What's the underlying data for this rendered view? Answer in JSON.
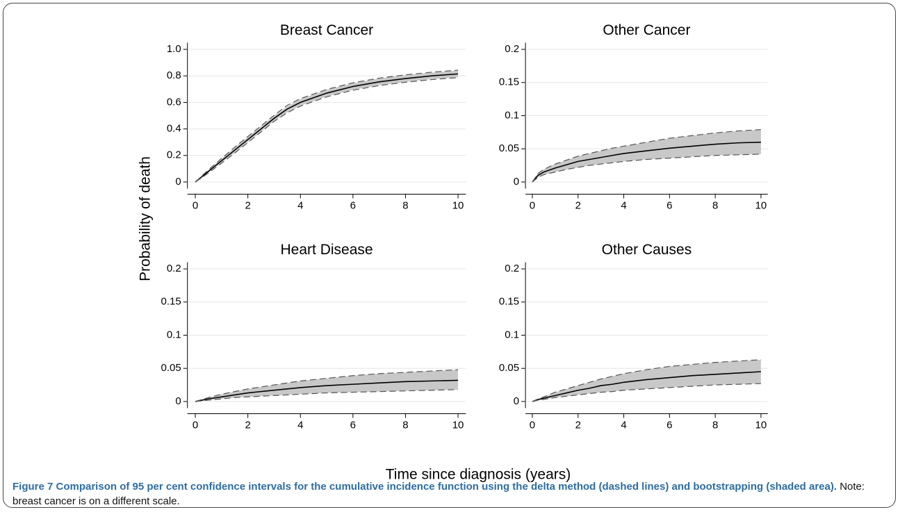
{
  "figure": {
    "ylabel": "Probability of death",
    "xlabel": "Time since diagnosis (years)",
    "caption_bold": "Figure 7 Comparison of 95 per cent confidence intervals for the cumulative incidence function using the delta method (dashed lines) and bootstrapping (shaded area).",
    "caption_note": "Note: breast cancer is on a different scale."
  },
  "chart_data": [
    {
      "type": "line",
      "title": "Breast Cancer",
      "x": [
        0,
        0.25,
        0.5,
        1,
        1.5,
        2,
        2.5,
        3,
        3.5,
        4,
        5,
        6,
        7,
        8,
        9,
        10
      ],
      "xlim": [
        -0.3,
        10.3
      ],
      "xticks": [
        0,
        2,
        4,
        6,
        8,
        10
      ],
      "ylim": [
        -0.05,
        1.05
      ],
      "yticks": [
        0,
        0.2,
        0.4,
        0.6,
        0.8,
        {
          "value": 1,
          "label": "1.0"
        }
      ],
      "grid": true,
      "band": {
        "color": "#c8c8c8",
        "lower": [
          0,
          0.035,
          0.07,
          0.145,
          0.22,
          0.3,
          0.38,
          0.46,
          0.525,
          0.575,
          0.645,
          0.695,
          0.73,
          0.755,
          0.775,
          0.79
        ],
        "upper": [
          0,
          0.045,
          0.09,
          0.175,
          0.26,
          0.34,
          0.42,
          0.5,
          0.57,
          0.625,
          0.695,
          0.745,
          0.78,
          0.805,
          0.825,
          0.84
        ]
      },
      "series": [
        {
          "color": "#000000",
          "dashed": false,
          "values": [
            0,
            0.04,
            0.08,
            0.16,
            0.24,
            0.32,
            0.4,
            0.48,
            0.55,
            0.6,
            0.67,
            0.72,
            0.755,
            0.78,
            0.8,
            0.815
          ]
        },
        {
          "color": "#555555",
          "dashed": true,
          "values": [
            0,
            0.033,
            0.068,
            0.142,
            0.218,
            0.297,
            0.377,
            0.457,
            0.522,
            0.572,
            0.642,
            0.692,
            0.727,
            0.752,
            0.772,
            0.787
          ]
        },
        {
          "color": "#555555",
          "dashed": true,
          "values": [
            0,
            0.047,
            0.092,
            0.178,
            0.262,
            0.343,
            0.423,
            0.503,
            0.578,
            0.628,
            0.698,
            0.748,
            0.783,
            0.808,
            0.828,
            0.843
          ]
        }
      ]
    },
    {
      "type": "line",
      "title": "Other Cancer",
      "x": [
        0,
        0.25,
        0.5,
        1,
        1.5,
        2,
        2.5,
        3,
        3.5,
        4,
        5,
        6,
        7,
        8,
        9,
        10
      ],
      "xlim": [
        -0.3,
        10.3
      ],
      "xticks": [
        0,
        2,
        4,
        6,
        8,
        10
      ],
      "ylim": [
        -0.01,
        0.21
      ],
      "yticks": [
        0,
        0.05,
        0.1,
        0.15,
        0.2
      ],
      "grid": true,
      "band": {
        "color": "#c8c8c8",
        "lower": [
          0,
          0.007,
          0.011,
          0.015,
          0.019,
          0.022,
          0.025,
          0.027,
          0.029,
          0.031,
          0.034,
          0.036,
          0.038,
          0.04,
          0.041,
          0.042
        ],
        "upper": [
          0,
          0.013,
          0.019,
          0.027,
          0.033,
          0.039,
          0.043,
          0.047,
          0.051,
          0.054,
          0.06,
          0.066,
          0.07,
          0.074,
          0.077,
          0.079
        ]
      },
      "series": [
        {
          "color": "#000000",
          "dashed": false,
          "values": [
            0,
            0.01,
            0.015,
            0.021,
            0.026,
            0.031,
            0.034,
            0.037,
            0.04,
            0.043,
            0.047,
            0.051,
            0.054,
            0.057,
            0.059,
            0.06
          ]
        },
        {
          "color": "#555555",
          "dashed": true,
          "values": [
            0,
            0.007,
            0.011,
            0.015,
            0.019,
            0.022,
            0.025,
            0.027,
            0.029,
            0.031,
            0.034,
            0.036,
            0.038,
            0.04,
            0.041,
            0.042
          ]
        },
        {
          "color": "#555555",
          "dashed": true,
          "values": [
            0,
            0.013,
            0.019,
            0.027,
            0.033,
            0.039,
            0.043,
            0.047,
            0.051,
            0.054,
            0.06,
            0.066,
            0.07,
            0.074,
            0.077,
            0.079
          ]
        }
      ]
    },
    {
      "type": "line",
      "title": "Heart Disease",
      "x": [
        0,
        0.25,
        0.5,
        1,
        1.5,
        2,
        2.5,
        3,
        3.5,
        4,
        5,
        6,
        7,
        8,
        9,
        10
      ],
      "xlim": [
        -0.3,
        10.3
      ],
      "xticks": [
        0,
        2,
        4,
        6,
        8,
        10
      ],
      "ylim": [
        -0.01,
        0.21
      ],
      "yticks": [
        0,
        0.05,
        0.1,
        0.15,
        0.2
      ],
      "grid": true,
      "band": {
        "color": "#c8c8c8",
        "lower": [
          0,
          0.001,
          0.002,
          0.004,
          0.006,
          0.007,
          0.008,
          0.009,
          0.01,
          0.011,
          0.013,
          0.014,
          0.015,
          0.016,
          0.017,
          0.018
        ],
        "upper": [
          0,
          0.003,
          0.006,
          0.011,
          0.015,
          0.019,
          0.022,
          0.025,
          0.028,
          0.031,
          0.035,
          0.039,
          0.042,
          0.044,
          0.046,
          0.048
        ]
      },
      "series": [
        {
          "color": "#000000",
          "dashed": false,
          "values": [
            0,
            0.002,
            0.004,
            0.007,
            0.01,
            0.013,
            0.015,
            0.017,
            0.019,
            0.021,
            0.024,
            0.026,
            0.028,
            0.03,
            0.031,
            0.032
          ]
        },
        {
          "color": "#555555",
          "dashed": true,
          "values": [
            0,
            0.001,
            0.002,
            0.004,
            0.006,
            0.007,
            0.008,
            0.009,
            0.01,
            0.011,
            0.013,
            0.014,
            0.015,
            0.016,
            0.017,
            0.018
          ]
        },
        {
          "color": "#555555",
          "dashed": true,
          "values": [
            0,
            0.003,
            0.006,
            0.011,
            0.015,
            0.019,
            0.022,
            0.025,
            0.028,
            0.031,
            0.035,
            0.039,
            0.042,
            0.044,
            0.046,
            0.048
          ]
        }
      ]
    },
    {
      "type": "line",
      "title": "Other Causes",
      "x": [
        0,
        0.25,
        0.5,
        1,
        1.5,
        2,
        2.5,
        3,
        3.5,
        4,
        5,
        6,
        7,
        8,
        9,
        10
      ],
      "xlim": [
        -0.3,
        10.3
      ],
      "xticks": [
        0,
        2,
        4,
        6,
        8,
        10
      ],
      "ylim": [
        -0.01,
        0.21
      ],
      "yticks": [
        0,
        0.05,
        0.1,
        0.15,
        0.2
      ],
      "grid": true,
      "band": {
        "color": "#c8c8c8",
        "lower": [
          0,
          0.002,
          0.003,
          0.006,
          0.008,
          0.01,
          0.012,
          0.014,
          0.015,
          0.017,
          0.019,
          0.021,
          0.023,
          0.025,
          0.026,
          0.027
        ],
        "upper": [
          0,
          0.004,
          0.007,
          0.014,
          0.019,
          0.024,
          0.029,
          0.034,
          0.038,
          0.042,
          0.048,
          0.053,
          0.056,
          0.059,
          0.061,
          0.063
        ]
      },
      "series": [
        {
          "color": "#000000",
          "dashed": false,
          "values": [
            0,
            0.003,
            0.005,
            0.009,
            0.013,
            0.017,
            0.02,
            0.024,
            0.026,
            0.029,
            0.033,
            0.036,
            0.039,
            0.041,
            0.043,
            0.045
          ]
        },
        {
          "color": "#555555",
          "dashed": true,
          "values": [
            0,
            0.002,
            0.003,
            0.006,
            0.008,
            0.01,
            0.012,
            0.014,
            0.015,
            0.017,
            0.019,
            0.021,
            0.023,
            0.025,
            0.026,
            0.027
          ]
        },
        {
          "color": "#555555",
          "dashed": true,
          "values": [
            0,
            0.004,
            0.007,
            0.014,
            0.019,
            0.024,
            0.029,
            0.034,
            0.038,
            0.042,
            0.048,
            0.053,
            0.056,
            0.059,
            0.061,
            0.063
          ]
        }
      ]
    }
  ]
}
